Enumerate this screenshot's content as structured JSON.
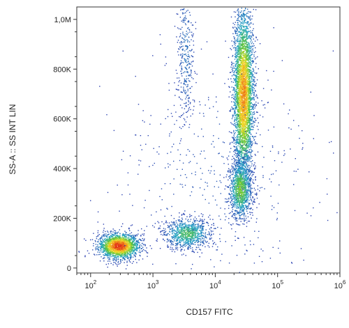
{
  "chart_data": {
    "type": "scatter",
    "subtype": "flow cytometry density dot plot",
    "title": "",
    "xlabel": "CD157 FITC",
    "ylabel": "SS-A :: SS INT LIN",
    "x_scale": "log",
    "y_scale": "linear",
    "xlim": [
      60,
      1000000
    ],
    "ylim": [
      -20000,
      1050000
    ],
    "x_ticks": [
      {
        "value": 100,
        "base": "10",
        "exp": "2"
      },
      {
        "value": 1000,
        "base": "10",
        "exp": "3"
      },
      {
        "value": 10000,
        "base": "10",
        "exp": "4"
      },
      {
        "value": 100000,
        "base": "10",
        "exp": "5"
      },
      {
        "value": 1000000,
        "base": "10",
        "exp": "6"
      }
    ],
    "y_ticks": [
      {
        "value": 0,
        "label": "0"
      },
      {
        "value": 200000,
        "label": "200K"
      },
      {
        "value": 400000,
        "label": "400K"
      },
      {
        "value": 600000,
        "label": "600K"
      },
      {
        "value": 800000,
        "label": "800K"
      },
      {
        "value": 1000000,
        "label": "1,0M"
      }
    ],
    "grid": false,
    "legend": "none",
    "color_scale": [
      "#2b3fb0",
      "#27a8c9",
      "#58c23a",
      "#f2e02a",
      "#f08a1c",
      "#e0241b"
    ],
    "populations": [
      {
        "x_center": 280,
        "y_center": 90000,
        "x_spread_decades": 0.16,
        "y_spread": 25000,
        "weight": 0.22,
        "peak_density": 1.0
      },
      {
        "x_center": 3500,
        "y_center": 140000,
        "x_spread_decades": 0.18,
        "y_spread": 30000,
        "weight": 0.1,
        "peak_density": 0.35
      },
      {
        "x_center": 28000,
        "y_center": 700000,
        "x_spread_decades": 0.08,
        "y_spread": 170000,
        "weight": 0.45,
        "peak_density": 0.8
      },
      {
        "x_center": 25000,
        "y_center": 320000,
        "x_spread_decades": 0.09,
        "y_spread": 60000,
        "weight": 0.13,
        "peak_density": 0.45
      },
      {
        "x_center": 3300,
        "y_center": 870000,
        "x_spread_decades": 0.07,
        "y_spread": 150000,
        "weight": 0.04,
        "peak_density": 0.1
      },
      {
        "x_center": 10000,
        "y_center": 350000,
        "x_spread_decades": 0.8,
        "y_spread": 250000,
        "weight": 0.06,
        "peak_density": 0.05
      }
    ]
  }
}
